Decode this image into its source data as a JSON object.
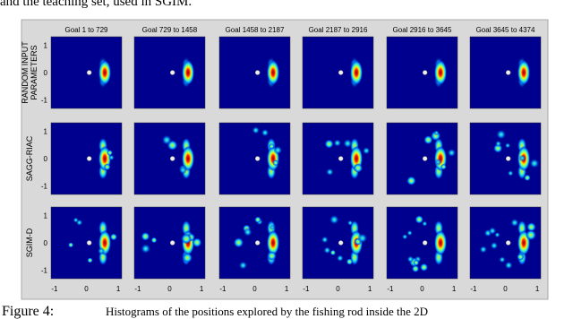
{
  "header": {
    "text": "and the teaching set, used in SGIM."
  },
  "figure": {
    "column_titles": [
      "Goal 1 to 729",
      "Goal 729 to 1458",
      "Goal 1458 to 2187",
      "Goal 2187 to 2916",
      "Goal 2916 to 3645",
      "Goal 3645 to 4374"
    ],
    "row_labels": [
      [
        "RANDOM INPUT",
        "PARAMETERS"
      ],
      [
        "SAGG-RIAC"
      ],
      [
        "SGIM-D"
      ]
    ],
    "y_ticks": [
      "1",
      "0",
      "-1"
    ],
    "x_ticks": [
      "-1",
      "0",
      "1"
    ]
  },
  "caption": {
    "label": "Figure 4:",
    "text": "Histograms of the positions explored by the fishing rod inside the 2D"
  }
}
